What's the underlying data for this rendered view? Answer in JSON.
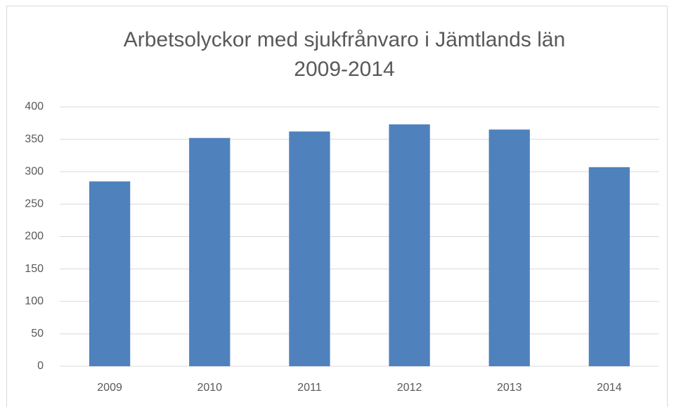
{
  "chart_data": {
    "type": "bar",
    "title": [
      "Arbetsolyckor med sjukfrånvaro i Jämtlands län",
      "2009-2014"
    ],
    "categories": [
      "2009",
      "2010",
      "2011",
      "2012",
      "2013",
      "2014"
    ],
    "values": [
      285,
      352,
      362,
      373,
      365,
      307
    ],
    "color": "#4f81bd",
    "ylim": [
      0,
      400
    ],
    "yticks": [
      0,
      50,
      100,
      150,
      200,
      250,
      300,
      350,
      400
    ],
    "grid": true
  }
}
